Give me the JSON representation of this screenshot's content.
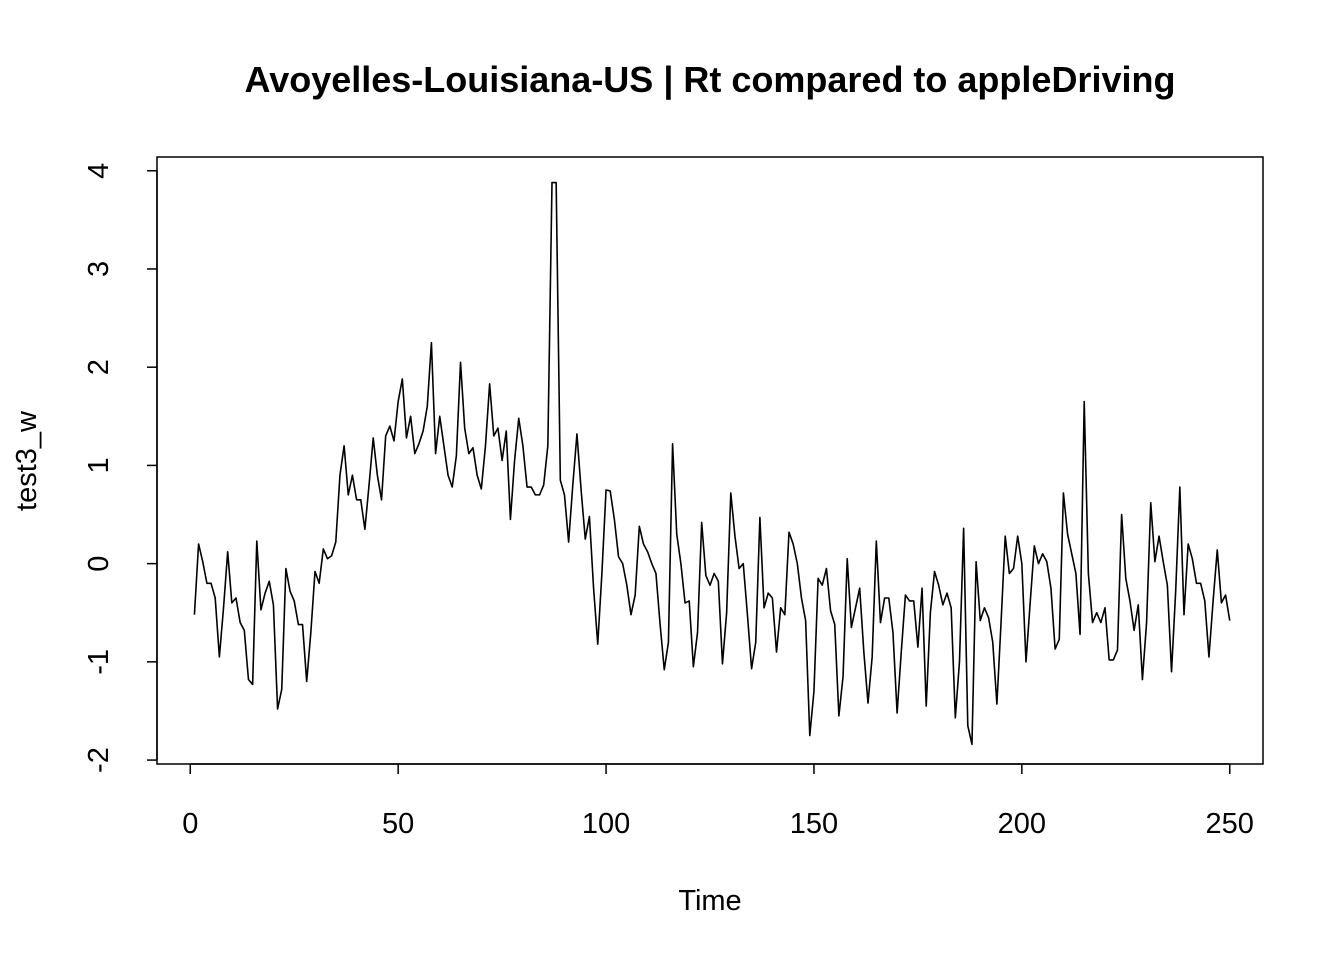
{
  "chart_data": {
    "type": "line",
    "title": "Avoyelles-Louisiana-US | Rt compared to appleDriving",
    "xlabel": "Time",
    "ylabel": "test3_w",
    "xlim": [
      -8,
      258
    ],
    "ylim": [
      -2.04,
      4.14
    ],
    "x_ticks": [
      0,
      50,
      100,
      150,
      200,
      250
    ],
    "x_tick_labels": [
      "0",
      "50",
      "100",
      "150",
      "200",
      "250"
    ],
    "y_ticks": [
      -2,
      -1,
      0,
      1,
      2,
      3,
      4
    ],
    "y_tick_labels": [
      "-2",
      "-1",
      "0",
      "1",
      "2",
      "3",
      "4"
    ],
    "grid": false,
    "legend": "none",
    "series": [
      {
        "color": "#000000",
        "x_start": 1,
        "values": [
          -0.52,
          0.2,
          0.02,
          -0.2,
          -0.2,
          -0.35,
          -0.95,
          -0.45,
          0.12,
          -0.4,
          -0.35,
          -0.6,
          -0.68,
          -1.18,
          -1.23,
          0.23,
          -0.47,
          -0.3,
          -0.18,
          -0.42,
          -1.48,
          -1.28,
          -0.05,
          -0.28,
          -0.38,
          -0.62,
          -0.62,
          -1.2,
          -0.7,
          -0.08,
          -0.2,
          0.15,
          0.05,
          0.08,
          0.22,
          0.9,
          1.2,
          0.7,
          0.9,
          0.65,
          0.65,
          0.35,
          0.8,
          1.28,
          0.9,
          0.65,
          1.3,
          1.4,
          1.25,
          1.65,
          1.88,
          1.28,
          1.5,
          1.12,
          1.22,
          1.35,
          1.6,
          2.25,
          1.12,
          1.5,
          1.2,
          0.9,
          0.78,
          1.1,
          2.05,
          1.38,
          1.12,
          1.18,
          0.9,
          0.76,
          1.2,
          1.83,
          1.3,
          1.38,
          1.05,
          1.35,
          0.45,
          1.05,
          1.48,
          1.2,
          0.78,
          0.78,
          0.7,
          0.7,
          0.8,
          1.2,
          3.88,
          3.88,
          0.85,
          0.7,
          0.22,
          0.8,
          1.32,
          0.75,
          0.25,
          0.48,
          -0.25,
          -0.82,
          -0.1,
          0.75,
          0.74,
          0.45,
          0.07,
          0.0,
          -0.22,
          -0.52,
          -0.32,
          0.38,
          0.2,
          0.12,
          0.0,
          -0.1,
          -0.62,
          -1.08,
          -0.8,
          1.22,
          0.3,
          0.0,
          -0.4,
          -0.38,
          -1.05,
          -0.7,
          0.42,
          -0.12,
          -0.22,
          -0.1,
          -0.18,
          -1.02,
          -0.5,
          0.72,
          0.28,
          -0.05,
          0.0,
          -0.52,
          -1.07,
          -0.8,
          0.47,
          -0.45,
          -0.3,
          -0.35,
          -0.9,
          -0.45,
          -0.52,
          0.32,
          0.2,
          0.0,
          -0.35,
          -0.58,
          -1.75,
          -1.3,
          -0.15,
          -0.22,
          -0.05,
          -0.48,
          -0.62,
          -1.55,
          -1.15,
          0.05,
          -0.65,
          -0.45,
          -0.25,
          -0.9,
          -1.42,
          -0.95,
          0.23,
          -0.6,
          -0.35,
          -0.35,
          -0.7,
          -1.52,
          -0.9,
          -0.32,
          -0.38,
          -0.38,
          -0.85,
          -0.25,
          -1.45,
          -0.5,
          -0.08,
          -0.22,
          -0.42,
          -0.3,
          -0.45,
          -1.57,
          -1.0,
          0.36,
          -1.65,
          -1.84,
          0.02,
          -0.58,
          -0.45,
          -0.55,
          -0.8,
          -1.43,
          -0.6,
          0.28,
          -0.1,
          -0.05,
          0.28,
          0.0,
          -1.0,
          -0.4,
          0.18,
          0.0,
          0.1,
          0.02,
          -0.25,
          -0.87,
          -0.77,
          0.72,
          0.3,
          0.1,
          -0.1,
          -0.72,
          1.65,
          -0.1,
          -0.6,
          -0.5,
          -0.6,
          -0.45,
          -0.98,
          -0.98,
          -0.88,
          0.5,
          -0.15,
          -0.38,
          -0.68,
          -0.42,
          -1.18,
          -0.6,
          0.62,
          0.02,
          0.28,
          0.02,
          -0.22,
          -1.1,
          -0.28,
          0.78,
          -0.52,
          0.2,
          0.05,
          -0.2,
          -0.2,
          -0.38,
          -0.95,
          -0.38,
          0.14,
          -0.4,
          -0.32,
          -0.58
        ]
      }
    ]
  }
}
